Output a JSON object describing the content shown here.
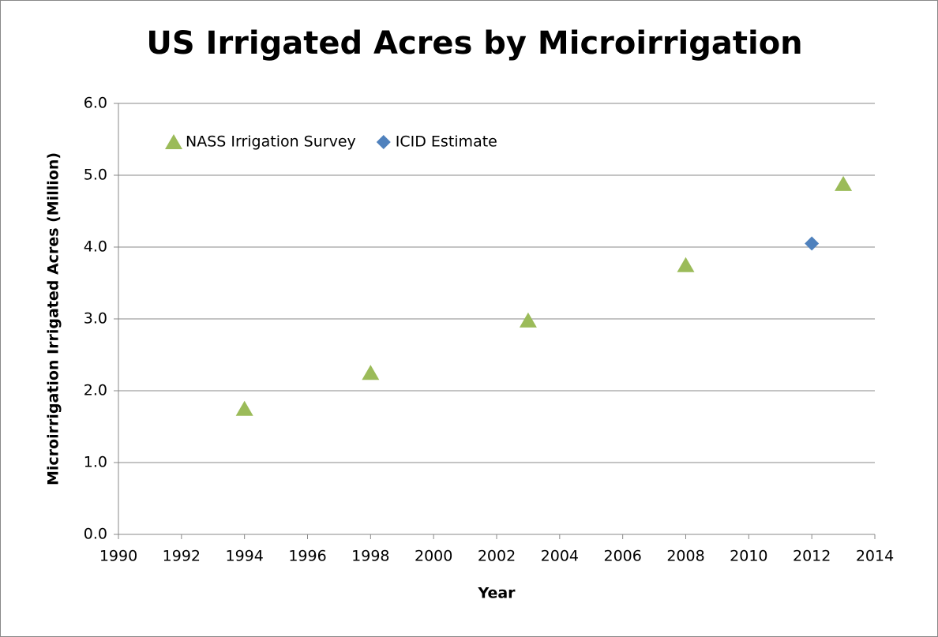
{
  "chart_data": {
    "type": "scatter",
    "title": "US Irrigated Acres by Microirrigation",
    "x_label": "Year",
    "y_label": "Microirrigation Irrigated Acres (Million)",
    "series": [
      {
        "name": "NASS Irrigation Survey",
        "color": "#9bbb59",
        "marker": "triangle",
        "x": [
          1994,
          1998,
          2003,
          2008,
          2013
        ],
        "values": [
          1.75,
          2.25,
          2.98,
          3.75,
          4.88
        ]
      },
      {
        "name": "ICID Estimate",
        "color": "#4f81bd",
        "marker": "diamond",
        "x": [
          2012
        ],
        "values": [
          4.05
        ]
      }
    ],
    "xlim": [
      1990,
      2014
    ],
    "xticks": [
      1990,
      1992,
      1994,
      1996,
      1998,
      2000,
      2002,
      2004,
      2006,
      2008,
      2010,
      2012,
      2014
    ],
    "ylim": [
      0,
      6
    ],
    "yticks": [
      {
        "value": 0,
        "label": "0.0"
      },
      {
        "value": 1,
        "label": "1.0"
      },
      {
        "value": 2,
        "label": "2.0"
      },
      {
        "value": 3,
        "label": "3.0"
      },
      {
        "value": 4,
        "label": "4.0"
      },
      {
        "value": 5,
        "label": "5.0"
      },
      {
        "value": 6,
        "label": "6.0"
      }
    ],
    "grid": true,
    "legend": "top-left"
  }
}
